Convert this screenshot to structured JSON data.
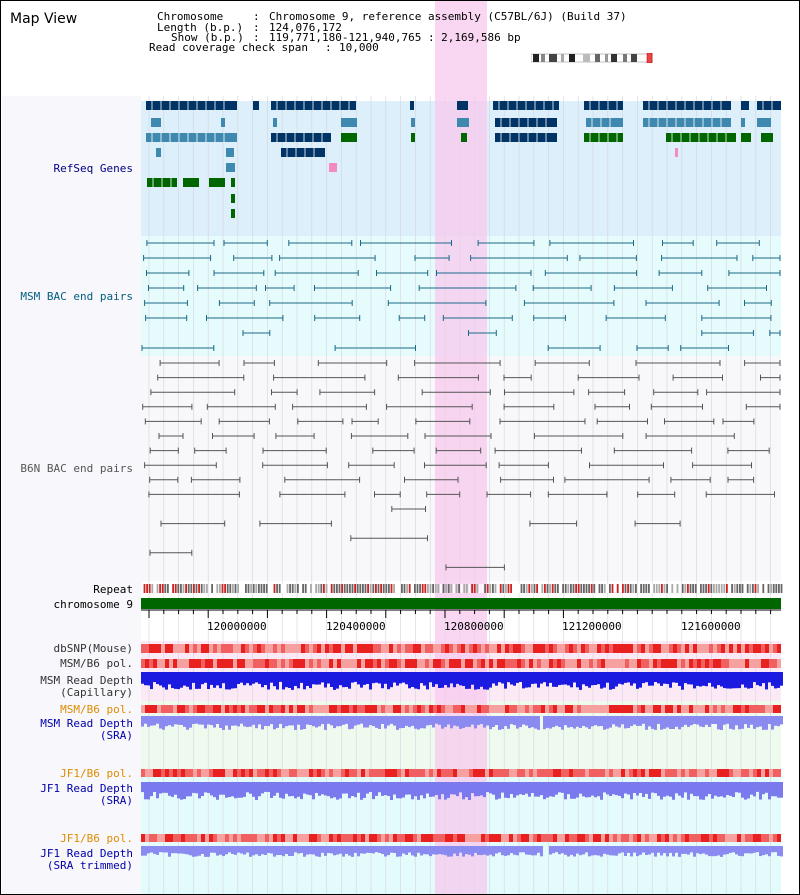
{
  "page": {
    "title": "Map View"
  },
  "info": {
    "chromosome_key": "Chromosome",
    "chromosome_value": "Chromosome 9, reference assembly (C57BL/6J) (Build 37)",
    "length_key": "Length (b.p.)",
    "length_value": "124,076,172",
    "show_key": "Show (b.p.)",
    "show_value": "119,771,180-121,940,765 : 2,169,586 bp",
    "coverage_key": "Read coverage check span",
    "coverage_value": "10,000"
  },
  "tracks": {
    "refseq": "RefSeq Genes",
    "msm_bac": "MSM BAC end pairs",
    "b6n_bac": "B6N BAC end pairs",
    "repeat": "Repeat",
    "chromosome": "chromosome 9",
    "dbsnp": "dbSNP(Mouse)",
    "msm_b6_pol": "MSM/B6 pol.",
    "msm_depth_cap_1": "MSM Read Depth",
    "msm_depth_cap_2": "(Capillary)",
    "msm_b6_pol_2": "MSM/B6 pol.",
    "msm_depth_sra_1": "MSM Read Depth",
    "msm_depth_sra_2": "(SRA)",
    "jf1_b6_pol": "JF1/B6 pol.",
    "jf1_depth_sra_1": "JF1 Read Depth",
    "jf1_depth_sra_2": "(SRA)",
    "jf1_b6_pol_2": "JF1/B6 pol.",
    "jf1_depth_trim_1": "JF1 Read Depth",
    "jf1_depth_trim_2": "(SRA trimmed)"
  },
  "ruler": {
    "ticks": [
      "120000000",
      "120400000",
      "120800000",
      "121200000",
      "121600000"
    ]
  },
  "colors": {
    "refseq_bg": "#ddeffa",
    "msm_bac_bg": "#e6fbfb",
    "highlight": "#f9d8f0",
    "chromosome_bar": "#006600",
    "dark_navy": "#003366",
    "steel_blue": "#3f88b0",
    "green": "#006600",
    "pol_red": "#ee3030",
    "depth_blue": "#2020e0",
    "depth_lavender": "#8888f0",
    "orange_label": "#e08c00",
    "blue_label": "#0000aa"
  }
}
